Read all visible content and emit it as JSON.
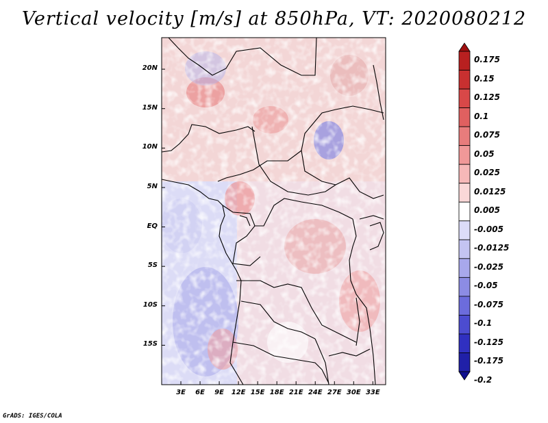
{
  "title": "Vertical velocity [m/s] at 850hPa, VT: 2020080212",
  "credit": "GrADS: IGES/COLA",
  "map": {
    "lat_range": [
      -20,
      24
    ],
    "lon_range": [
      0,
      35
    ],
    "lat_labels": [
      "20N",
      "15N",
      "10N",
      "5N",
      "EQ",
      "5S",
      "10S",
      "15S"
    ],
    "lon_labels": [
      "3E",
      "6E",
      "9E",
      "12E",
      "15E",
      "18E",
      "21E",
      "24E",
      "27E",
      "30E",
      "33E"
    ]
  },
  "colorbar": {
    "labels": [
      "0.175",
      "0.15",
      "0.125",
      "0.1",
      "0.075",
      "0.05",
      "0.025",
      "0.0125",
      "0.005",
      "-0.005",
      "-0.0125",
      "-0.025",
      "-0.05",
      "-0.075",
      "-0.1",
      "-0.125",
      "-0.175",
      "-0.2"
    ],
    "colors": [
      "#a01010",
      "#b82020",
      "#c83030",
      "#d84848",
      "#e06060",
      "#e87c7c",
      "#f09898",
      "#f6b8b8",
      "#fad8d8",
      "#ffffff",
      "#dcdcf8",
      "#c4c4f2",
      "#a8a8ec",
      "#8c8ce4",
      "#6c6cdc",
      "#4c4cd0",
      "#3030c0",
      "#2020a8",
      "#101090"
    ]
  }
}
